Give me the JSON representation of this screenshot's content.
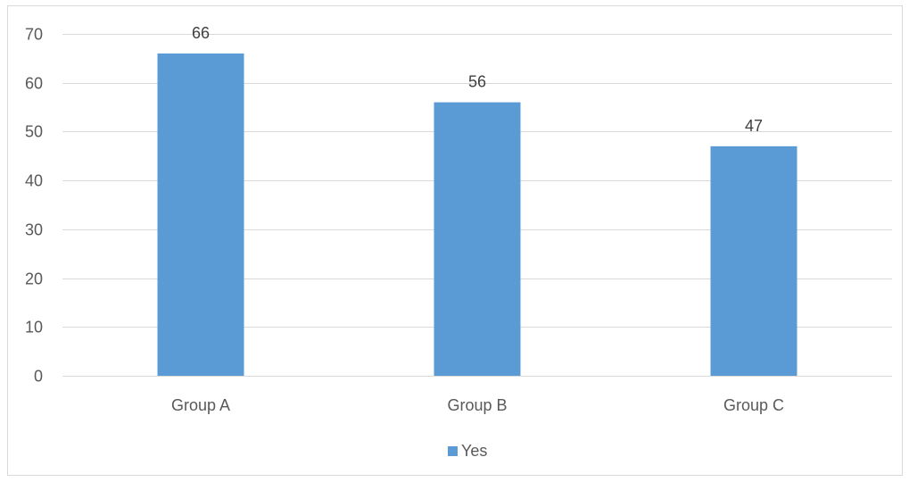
{
  "chart_data": {
    "type": "bar",
    "categories": [
      "Group A",
      "Group B",
      "Group C"
    ],
    "series": [
      {
        "name": "Yes",
        "values": [
          66,
          56,
          47
        ],
        "color": "#5b9bd5"
      }
    ],
    "ylim": [
      0,
      70
    ],
    "yticks": [
      0,
      10,
      20,
      30,
      40,
      50,
      60,
      70
    ],
    "grid": true,
    "gridColor": "#d9d9d9",
    "data_labels": true,
    "legend_position": "bottom"
  }
}
